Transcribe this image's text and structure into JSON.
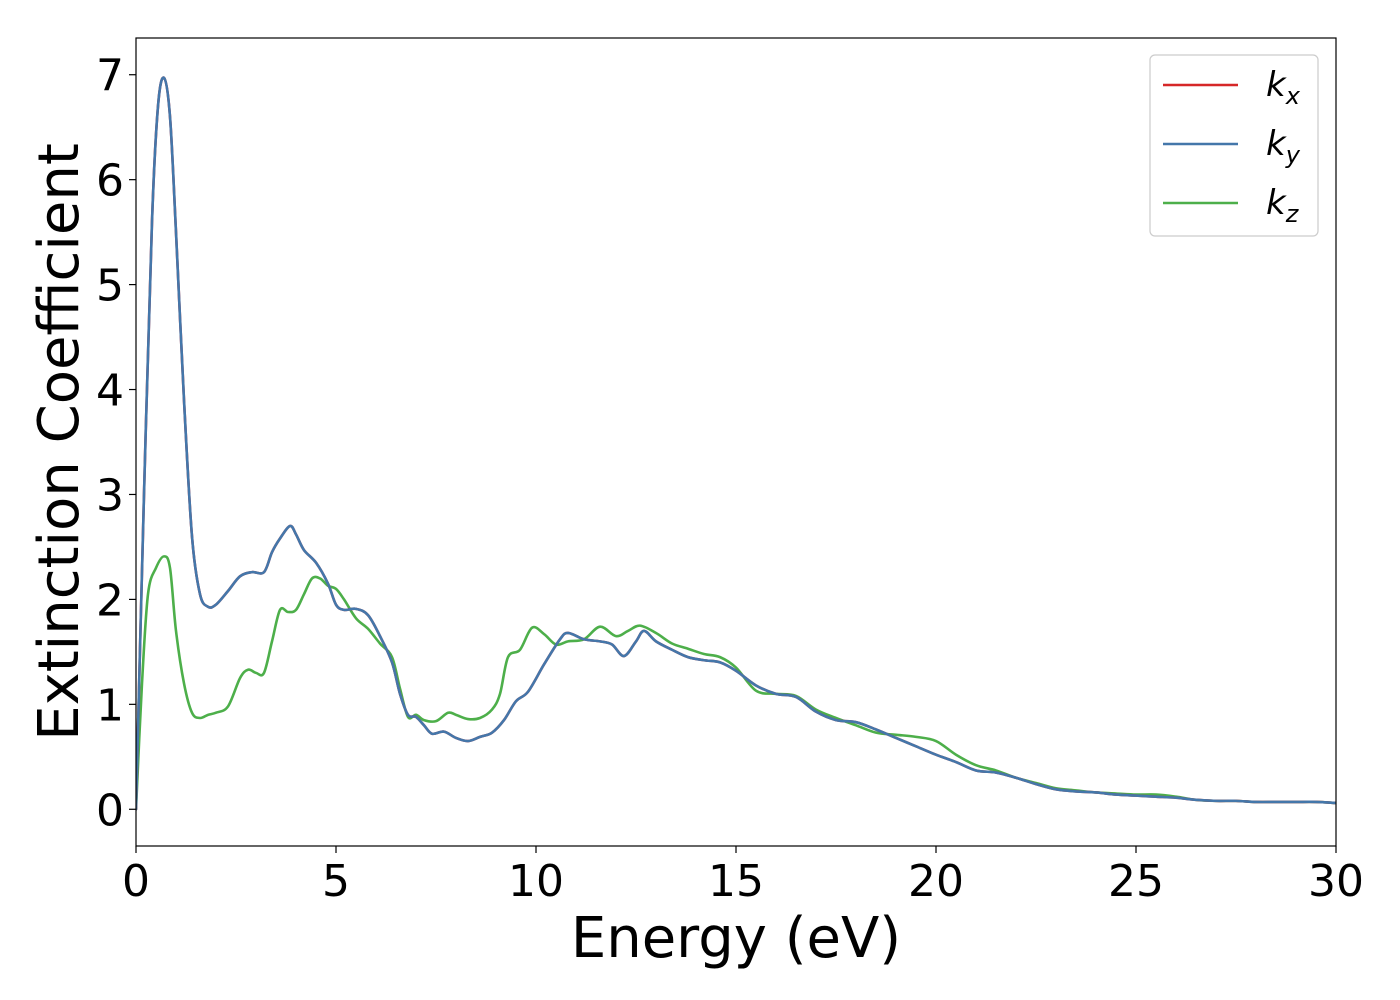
{
  "chart_data": {
    "type": "line",
    "xlabel": "Energy (eV)",
    "ylabel": "Extinction Coefficient",
    "xlim": [
      0,
      30
    ],
    "ylim": [
      -0.35,
      7.35
    ],
    "xticks": [
      "0",
      "5",
      "10",
      "15",
      "20",
      "25",
      "30"
    ],
    "yticks": [
      "0",
      "1",
      "2",
      "3",
      "4",
      "5",
      "6",
      "7"
    ],
    "grid": false,
    "legend_position": "top-right",
    "series": [
      {
        "name": "k",
        "subscript": "x",
        "color": "#d62728",
        "points": [
          [
            0,
            0
          ],
          [
            0.2,
            3.0
          ],
          [
            0.4,
            5.6
          ],
          [
            0.55,
            6.7
          ],
          [
            0.7,
            6.97
          ],
          [
            0.85,
            6.6
          ],
          [
            1.0,
            5.5
          ],
          [
            1.2,
            3.9
          ],
          [
            1.4,
            2.6
          ],
          [
            1.6,
            2.05
          ],
          [
            1.8,
            1.93
          ],
          [
            2.0,
            1.95
          ],
          [
            2.3,
            2.08
          ],
          [
            2.6,
            2.22
          ],
          [
            2.9,
            2.26
          ],
          [
            3.2,
            2.26
          ],
          [
            3.4,
            2.45
          ],
          [
            3.6,
            2.58
          ],
          [
            3.85,
            2.7
          ],
          [
            4.0,
            2.62
          ],
          [
            4.2,
            2.47
          ],
          [
            4.5,
            2.35
          ],
          [
            4.8,
            2.15
          ],
          [
            5.0,
            1.95
          ],
          [
            5.2,
            1.9
          ],
          [
            5.5,
            1.91
          ],
          [
            5.8,
            1.85
          ],
          [
            6.1,
            1.65
          ],
          [
            6.4,
            1.4
          ],
          [
            6.6,
            1.1
          ],
          [
            6.8,
            0.9
          ],
          [
            7.0,
            0.88
          ],
          [
            7.2,
            0.8
          ],
          [
            7.4,
            0.72
          ],
          [
            7.7,
            0.74
          ],
          [
            8.0,
            0.68
          ],
          [
            8.3,
            0.65
          ],
          [
            8.6,
            0.69
          ],
          [
            8.9,
            0.73
          ],
          [
            9.2,
            0.85
          ],
          [
            9.5,
            1.03
          ],
          [
            9.8,
            1.12
          ],
          [
            10.2,
            1.38
          ],
          [
            10.6,
            1.62
          ],
          [
            10.8,
            1.68
          ],
          [
            11.2,
            1.62
          ],
          [
            11.6,
            1.6
          ],
          [
            11.9,
            1.57
          ],
          [
            12.2,
            1.46
          ],
          [
            12.5,
            1.6
          ],
          [
            12.7,
            1.7
          ],
          [
            13.0,
            1.6
          ],
          [
            13.4,
            1.52
          ],
          [
            13.8,
            1.45
          ],
          [
            14.2,
            1.42
          ],
          [
            14.6,
            1.4
          ],
          [
            15.0,
            1.32
          ],
          [
            15.5,
            1.18
          ],
          [
            16.0,
            1.1
          ],
          [
            16.5,
            1.07
          ],
          [
            17.0,
            0.93
          ],
          [
            17.5,
            0.85
          ],
          [
            18.0,
            0.83
          ],
          [
            18.5,
            0.76
          ],
          [
            19.0,
            0.68
          ],
          [
            19.5,
            0.6
          ],
          [
            20.0,
            0.52
          ],
          [
            20.5,
            0.45
          ],
          [
            21.0,
            0.37
          ],
          [
            21.5,
            0.35
          ],
          [
            22.0,
            0.3
          ],
          [
            22.5,
            0.24
          ],
          [
            23.0,
            0.19
          ],
          [
            23.5,
            0.17
          ],
          [
            24.0,
            0.16
          ],
          [
            24.5,
            0.14
          ],
          [
            25.0,
            0.13
          ],
          [
            25.5,
            0.12
          ],
          [
            26.0,
            0.11
          ],
          [
            26.5,
            0.09
          ],
          [
            27.0,
            0.08
          ],
          [
            27.5,
            0.08
          ],
          [
            28.0,
            0.07
          ],
          [
            28.5,
            0.07
          ],
          [
            29.0,
            0.07
          ],
          [
            29.5,
            0.07
          ],
          [
            30.0,
            0.06
          ]
        ]
      },
      {
        "name": "k",
        "subscript": "y",
        "color": "#4477aa",
        "points": [
          [
            0,
            0
          ],
          [
            0.2,
            3.0
          ],
          [
            0.4,
            5.6
          ],
          [
            0.55,
            6.7
          ],
          [
            0.7,
            6.97
          ],
          [
            0.85,
            6.6
          ],
          [
            1.0,
            5.5
          ],
          [
            1.2,
            3.9
          ],
          [
            1.4,
            2.6
          ],
          [
            1.6,
            2.05
          ],
          [
            1.8,
            1.93
          ],
          [
            2.0,
            1.95
          ],
          [
            2.3,
            2.08
          ],
          [
            2.6,
            2.22
          ],
          [
            2.9,
            2.26
          ],
          [
            3.2,
            2.26
          ],
          [
            3.4,
            2.45
          ],
          [
            3.6,
            2.58
          ],
          [
            3.85,
            2.7
          ],
          [
            4.0,
            2.62
          ],
          [
            4.2,
            2.47
          ],
          [
            4.5,
            2.35
          ],
          [
            4.8,
            2.15
          ],
          [
            5.0,
            1.95
          ],
          [
            5.2,
            1.9
          ],
          [
            5.5,
            1.91
          ],
          [
            5.8,
            1.85
          ],
          [
            6.1,
            1.65
          ],
          [
            6.4,
            1.4
          ],
          [
            6.6,
            1.1
          ],
          [
            6.8,
            0.9
          ],
          [
            7.0,
            0.88
          ],
          [
            7.2,
            0.8
          ],
          [
            7.4,
            0.72
          ],
          [
            7.7,
            0.74
          ],
          [
            8.0,
            0.68
          ],
          [
            8.3,
            0.65
          ],
          [
            8.6,
            0.69
          ],
          [
            8.9,
            0.73
          ],
          [
            9.2,
            0.85
          ],
          [
            9.5,
            1.03
          ],
          [
            9.8,
            1.12
          ],
          [
            10.2,
            1.38
          ],
          [
            10.6,
            1.62
          ],
          [
            10.8,
            1.68
          ],
          [
            11.2,
            1.62
          ],
          [
            11.6,
            1.6
          ],
          [
            11.9,
            1.57
          ],
          [
            12.2,
            1.46
          ],
          [
            12.5,
            1.6
          ],
          [
            12.7,
            1.7
          ],
          [
            13.0,
            1.6
          ],
          [
            13.4,
            1.52
          ],
          [
            13.8,
            1.45
          ],
          [
            14.2,
            1.42
          ],
          [
            14.6,
            1.4
          ],
          [
            15.0,
            1.32
          ],
          [
            15.5,
            1.18
          ],
          [
            16.0,
            1.1
          ],
          [
            16.5,
            1.07
          ],
          [
            17.0,
            0.93
          ],
          [
            17.5,
            0.85
          ],
          [
            18.0,
            0.83
          ],
          [
            18.5,
            0.76
          ],
          [
            19.0,
            0.68
          ],
          [
            19.5,
            0.6
          ],
          [
            20.0,
            0.52
          ],
          [
            20.5,
            0.45
          ],
          [
            21.0,
            0.37
          ],
          [
            21.5,
            0.35
          ],
          [
            22.0,
            0.3
          ],
          [
            22.5,
            0.24
          ],
          [
            23.0,
            0.19
          ],
          [
            23.5,
            0.17
          ],
          [
            24.0,
            0.16
          ],
          [
            24.5,
            0.14
          ],
          [
            25.0,
            0.13
          ],
          [
            25.5,
            0.12
          ],
          [
            26.0,
            0.11
          ],
          [
            26.5,
            0.09
          ],
          [
            27.0,
            0.08
          ],
          [
            27.5,
            0.08
          ],
          [
            28.0,
            0.07
          ],
          [
            28.5,
            0.07
          ],
          [
            29.0,
            0.07
          ],
          [
            29.5,
            0.07
          ],
          [
            30.0,
            0.06
          ]
        ]
      },
      {
        "name": "k",
        "subscript": "z",
        "color": "#4daf4a",
        "points": [
          [
            0,
            0
          ],
          [
            0.15,
            1.2
          ],
          [
            0.3,
            2.05
          ],
          [
            0.5,
            2.3
          ],
          [
            0.7,
            2.41
          ],
          [
            0.85,
            2.3
          ],
          [
            1.0,
            1.7
          ],
          [
            1.2,
            1.2
          ],
          [
            1.4,
            0.92
          ],
          [
            1.6,
            0.87
          ],
          [
            1.8,
            0.9
          ],
          [
            2.0,
            0.92
          ],
          [
            2.3,
            0.98
          ],
          [
            2.6,
            1.25
          ],
          [
            2.8,
            1.33
          ],
          [
            3.0,
            1.3
          ],
          [
            3.2,
            1.3
          ],
          [
            3.4,
            1.6
          ],
          [
            3.6,
            1.9
          ],
          [
            3.8,
            1.88
          ],
          [
            4.0,
            1.9
          ],
          [
            4.2,
            2.05
          ],
          [
            4.4,
            2.2
          ],
          [
            4.6,
            2.2
          ],
          [
            4.8,
            2.13
          ],
          [
            5.0,
            2.1
          ],
          [
            5.2,
            2.0
          ],
          [
            5.5,
            1.82
          ],
          [
            5.8,
            1.72
          ],
          [
            6.1,
            1.58
          ],
          [
            6.4,
            1.45
          ],
          [
            6.6,
            1.15
          ],
          [
            6.8,
            0.88
          ],
          [
            7.0,
            0.9
          ],
          [
            7.2,
            0.85
          ],
          [
            7.5,
            0.84
          ],
          [
            7.8,
            0.92
          ],
          [
            8.0,
            0.9
          ],
          [
            8.3,
            0.86
          ],
          [
            8.6,
            0.87
          ],
          [
            8.9,
            0.95
          ],
          [
            9.1,
            1.1
          ],
          [
            9.3,
            1.45
          ],
          [
            9.6,
            1.52
          ],
          [
            9.9,
            1.73
          ],
          [
            10.2,
            1.67
          ],
          [
            10.5,
            1.57
          ],
          [
            10.8,
            1.6
          ],
          [
            11.2,
            1.62
          ],
          [
            11.6,
            1.74
          ],
          [
            12.0,
            1.65
          ],
          [
            12.3,
            1.7
          ],
          [
            12.6,
            1.75
          ],
          [
            13.0,
            1.68
          ],
          [
            13.4,
            1.58
          ],
          [
            13.8,
            1.53
          ],
          [
            14.2,
            1.48
          ],
          [
            14.6,
            1.45
          ],
          [
            15.0,
            1.35
          ],
          [
            15.5,
            1.13
          ],
          [
            16.0,
            1.1
          ],
          [
            16.5,
            1.08
          ],
          [
            17.0,
            0.95
          ],
          [
            17.5,
            0.87
          ],
          [
            18.0,
            0.8
          ],
          [
            18.5,
            0.73
          ],
          [
            19.0,
            0.71
          ],
          [
            19.5,
            0.69
          ],
          [
            20.0,
            0.65
          ],
          [
            20.5,
            0.52
          ],
          [
            21.0,
            0.42
          ],
          [
            21.5,
            0.37
          ],
          [
            22.0,
            0.3
          ],
          [
            22.5,
            0.25
          ],
          [
            23.0,
            0.2
          ],
          [
            23.5,
            0.18
          ],
          [
            24.0,
            0.16
          ],
          [
            24.5,
            0.15
          ],
          [
            25.0,
            0.14
          ],
          [
            25.5,
            0.14
          ],
          [
            26.0,
            0.12
          ],
          [
            26.5,
            0.09
          ],
          [
            27.0,
            0.08
          ],
          [
            27.5,
            0.08
          ],
          [
            28.0,
            0.07
          ],
          [
            28.5,
            0.07
          ],
          [
            29.0,
            0.07
          ],
          [
            29.5,
            0.07
          ],
          [
            30.0,
            0.06
          ]
        ]
      }
    ]
  }
}
